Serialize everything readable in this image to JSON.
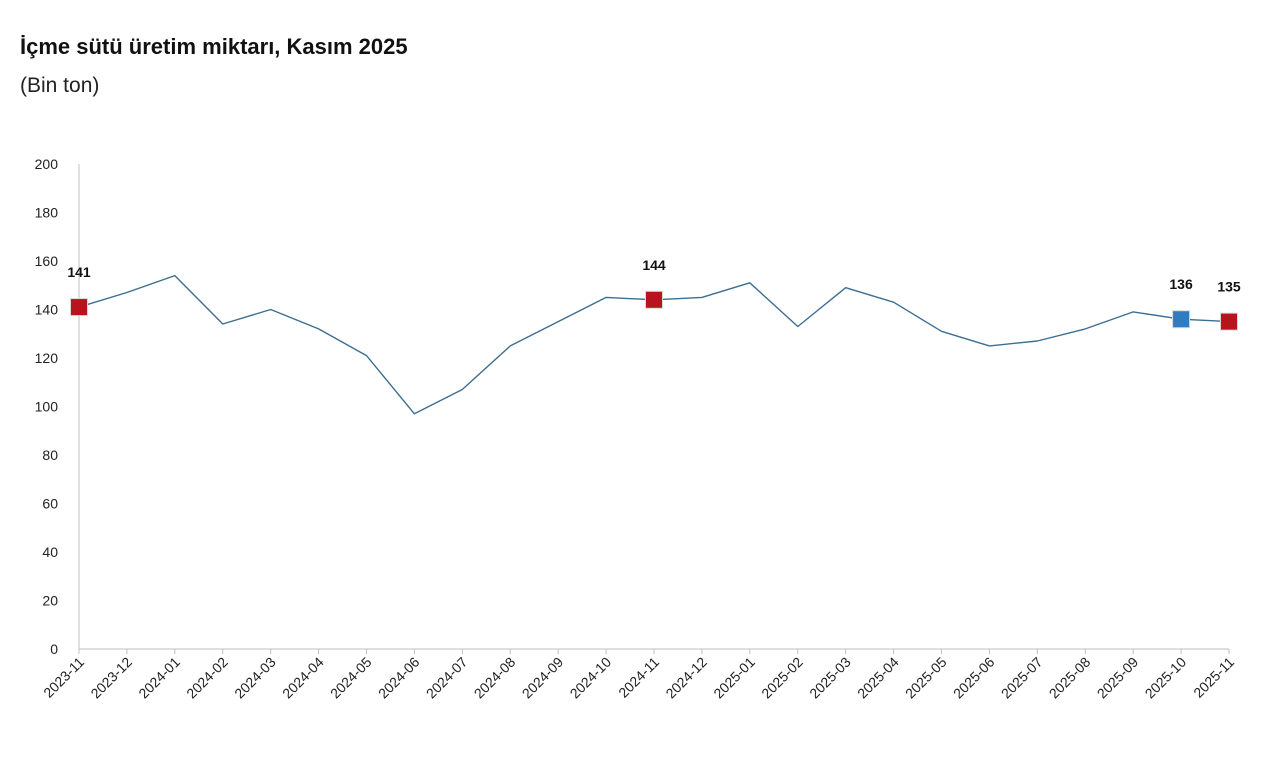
{
  "chart_data": {
    "type": "line",
    "title": "İçme sütü üretim miktarı, Kasım 2025",
    "subtitle": "(Bin ton)",
    "xlabel": "",
    "ylabel": "",
    "ylim": [
      0,
      200
    ],
    "yticks": [
      0,
      20,
      40,
      60,
      80,
      100,
      120,
      140,
      160,
      180,
      200
    ],
    "grid": false,
    "legend": "none",
    "categories": [
      "2023-11",
      "2023-12",
      "2024-01",
      "2024-02",
      "2024-03",
      "2024-04",
      "2024-05",
      "2024-06",
      "2024-07",
      "2024-08",
      "2024-09",
      "2024-10",
      "2024-11",
      "2024-12",
      "2025-01",
      "2025-02",
      "2025-03",
      "2025-04",
      "2025-05",
      "2025-06",
      "2025-07",
      "2025-08",
      "2025-09",
      "2025-10",
      "2025-11"
    ],
    "series": [
      {
        "values": [
          141,
          147,
          154,
          134,
          140,
          132,
          121,
          97,
          107,
          125,
          135,
          145,
          144,
          145,
          151,
          133,
          149,
          143,
          131,
          125,
          127,
          132,
          139,
          136,
          135
        ],
        "color": "#3c6e91"
      }
    ],
    "highlights": [
      {
        "category": "2023-11",
        "label": "141",
        "color": "#b7141e"
      },
      {
        "category": "2024-11",
        "label": "144",
        "color": "#b7141e"
      },
      {
        "category": "2025-10",
        "label": "136",
        "color": "#2f7dc0"
      },
      {
        "category": "2025-11",
        "label": "135",
        "color": "#b7141e"
      }
    ],
    "axis_color": "#bfbfbf"
  }
}
